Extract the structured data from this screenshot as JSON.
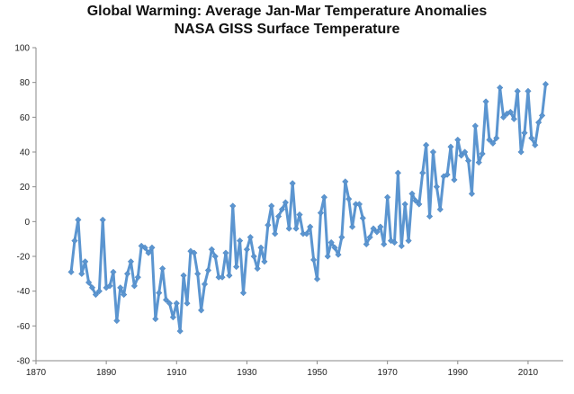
{
  "chart_data": {
    "type": "line",
    "title": "Global Warming: Average Jan-Mar Temperature Anomalies",
    "subtitle": "NASA GISS Surface Temperature",
    "xlabel": "",
    "ylabel": "",
    "xlim": [
      1870,
      2020
    ],
    "ylim": [
      -80,
      100
    ],
    "xticks": [
      1870,
      1890,
      1910,
      1930,
      1950,
      1970,
      1990,
      2010
    ],
    "yticks": [
      -80,
      -60,
      -40,
      -20,
      0,
      20,
      40,
      60,
      80,
      100
    ],
    "grid": false,
    "legend": "none",
    "marker": "diamond",
    "color": "#5b95d0",
    "series": [
      {
        "x": [
          1880,
          1881,
          1882,
          1883,
          1884,
          1885,
          1886,
          1887,
          1888,
          1889,
          1890,
          1891,
          1892,
          1893,
          1894,
          1895,
          1896,
          1897,
          1898,
          1899,
          1900,
          1901,
          1902,
          1903,
          1904,
          1905,
          1906,
          1907,
          1908,
          1909,
          1910,
          1911,
          1912,
          1913,
          1914,
          1915,
          1916,
          1917,
          1918,
          1919,
          1920,
          1921,
          1922,
          1923,
          1924,
          1925,
          1926,
          1927,
          1928,
          1929,
          1930,
          1931,
          1932,
          1933,
          1934,
          1935,
          1936,
          1937,
          1938,
          1939,
          1940,
          1941,
          1942,
          1943,
          1944,
          1945,
          1946,
          1947,
          1948,
          1949,
          1950,
          1951,
          1952,
          1953,
          1954,
          1955,
          1956,
          1957,
          1958,
          1959,
          1960,
          1961,
          1962,
          1963,
          1964,
          1965,
          1966,
          1967,
          1968,
          1969,
          1970,
          1971,
          1972,
          1973,
          1974,
          1975,
          1976,
          1977,
          1978,
          1979,
          1980,
          1981,
          1982,
          1983,
          1984,
          1985,
          1986,
          1987,
          1988,
          1989,
          1990,
          1991,
          1992,
          1993,
          1994,
          1995,
          1996,
          1997,
          1998,
          1999,
          2000,
          2001,
          2002,
          2003,
          2004,
          2005,
          2006,
          2007,
          2008,
          2009,
          2010,
          2011,
          2012,
          2013,
          2014,
          2015
        ],
        "values": [
          -29,
          -11,
          1,
          -30,
          -23,
          -35,
          -38,
          -42,
          -40,
          1,
          -38,
          -37,
          -29,
          -57,
          -38,
          -42,
          -30,
          -23,
          -37,
          -32,
          -14,
          -15,
          -18,
          -15,
          -56,
          -41,
          -27,
          -45,
          -47,
          -55,
          -47,
          -63,
          -31,
          -47,
          -17,
          -18,
          -30,
          -51,
          -36,
          -28,
          -16,
          -20,
          -32,
          -32,
          -18,
          -31,
          9,
          -26,
          -11,
          -41,
          -16,
          -9,
          -20,
          -27,
          -15,
          -23,
          -2,
          9,
          -7,
          3,
          7,
          11,
          -4,
          22,
          -4,
          4,
          -7,
          -7,
          -3,
          -22,
          -33,
          5,
          14,
          -20,
          -12,
          -15,
          -19,
          -9,
          23,
          13,
          -3,
          10,
          10,
          2,
          -13,
          -9,
          -4,
          -6,
          -3,
          -13,
          14,
          -11,
          -12,
          28,
          -14,
          10,
          -11,
          16,
          12,
          10,
          28,
          44,
          3,
          40,
          20,
          7,
          26,
          27,
          43,
          24,
          47,
          38,
          40,
          35,
          16,
          55,
          34,
          39,
          69,
          47,
          45,
          48,
          77,
          60,
          62,
          63,
          59,
          75,
          40,
          51,
          75,
          48,
          44,
          57,
          61,
          79
        ]
      }
    ]
  }
}
